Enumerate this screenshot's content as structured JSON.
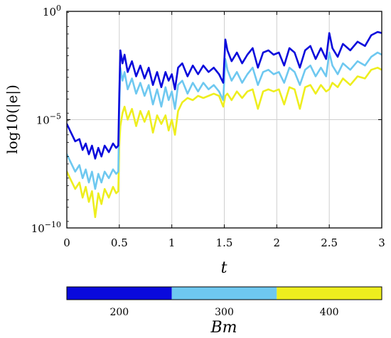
{
  "chart_data": {
    "type": "line",
    "title": "",
    "xlabel": "t",
    "ylabel": "log10(|e|)",
    "xlim": [
      0,
      3
    ],
    "ylim_log10": [
      -10,
      0
    ],
    "x_ticks": [
      "0",
      "0.5",
      "1",
      "1.5",
      "2",
      "2.5",
      "3"
    ],
    "y_ticks": [
      {
        "base": "10",
        "exp": "0",
        "value": 0
      },
      {
        "base": "10",
        "exp": "−5",
        "value": -5
      },
      {
        "base": "10",
        "exp": "−10",
        "value": -10
      }
    ],
    "grid": true,
    "colorbar": {
      "title": "Bm",
      "entries": [
        {
          "label": "200",
          "color": "#0a0adc"
        },
        {
          "label": "300",
          "color": "#6ec8f0"
        },
        {
          "label": "400",
          "color": "#eeee1e"
        }
      ]
    },
    "series": [
      {
        "name": "200",
        "color": "#0a0adc",
        "points": [
          [
            0,
            -5.2
          ],
          [
            0.04,
            -5.6
          ],
          [
            0.08,
            -6.0
          ],
          [
            0.12,
            -5.9
          ],
          [
            0.15,
            -6.4
          ],
          [
            0.18,
            -6.1
          ],
          [
            0.21,
            -6.6
          ],
          [
            0.24,
            -6.2
          ],
          [
            0.27,
            -6.8
          ],
          [
            0.3,
            -6.3
          ],
          [
            0.33,
            -6.7
          ],
          [
            0.36,
            -6.2
          ],
          [
            0.4,
            -6.5
          ],
          [
            0.44,
            -6.1
          ],
          [
            0.47,
            -6.3
          ],
          [
            0.49,
            -6.2
          ],
          [
            0.5,
            -3.8
          ],
          [
            0.51,
            -1.8
          ],
          [
            0.53,
            -2.4
          ],
          [
            0.55,
            -2.0
          ],
          [
            0.58,
            -2.8
          ],
          [
            0.62,
            -2.3
          ],
          [
            0.66,
            -3.0
          ],
          [
            0.7,
            -2.5
          ],
          [
            0.74,
            -3.1
          ],
          [
            0.78,
            -2.6
          ],
          [
            0.82,
            -3.4
          ],
          [
            0.86,
            -2.8
          ],
          [
            0.9,
            -3.5
          ],
          [
            0.94,
            -2.8
          ],
          [
            0.97,
            -3.2
          ],
          [
            1.0,
            -2.9
          ],
          [
            1.03,
            -3.6
          ],
          [
            1.06,
            -2.6
          ],
          [
            1.1,
            -2.4
          ],
          [
            1.15,
            -3.0
          ],
          [
            1.2,
            -2.5
          ],
          [
            1.25,
            -2.9
          ],
          [
            1.3,
            -2.5
          ],
          [
            1.35,
            -2.8
          ],
          [
            1.4,
            -2.6
          ],
          [
            1.45,
            -2.9
          ],
          [
            1.49,
            -3.3
          ],
          [
            1.51,
            -1.3
          ],
          [
            1.53,
            -1.8
          ],
          [
            1.57,
            -2.3
          ],
          [
            1.62,
            -1.9
          ],
          [
            1.67,
            -2.4
          ],
          [
            1.72,
            -2.0
          ],
          [
            1.77,
            -1.7
          ],
          [
            1.82,
            -2.6
          ],
          [
            1.87,
            -1.9
          ],
          [
            1.92,
            -1.8
          ],
          [
            1.97,
            -2.0
          ],
          [
            2.02,
            -1.9
          ],
          [
            2.07,
            -2.5
          ],
          [
            2.12,
            -1.7
          ],
          [
            2.17,
            -1.9
          ],
          [
            2.22,
            -2.6
          ],
          [
            2.27,
            -1.8
          ],
          [
            2.32,
            -1.6
          ],
          [
            2.37,
            -2.2
          ],
          [
            2.42,
            -1.7
          ],
          [
            2.47,
            -2.2
          ],
          [
            2.5,
            -1.0
          ],
          [
            2.53,
            -1.7
          ],
          [
            2.58,
            -2.1
          ],
          [
            2.63,
            -1.5
          ],
          [
            2.7,
            -1.8
          ],
          [
            2.77,
            -1.4
          ],
          [
            2.84,
            -1.6
          ],
          [
            2.9,
            -1.1
          ],
          [
            2.96,
            -0.95
          ],
          [
            3.0,
            -1.0
          ]
        ]
      },
      {
        "name": "300",
        "color": "#6ec8f0",
        "points": [
          [
            0,
            -6.6
          ],
          [
            0.04,
            -7.0
          ],
          [
            0.08,
            -7.4
          ],
          [
            0.12,
            -7.1
          ],
          [
            0.15,
            -7.7
          ],
          [
            0.18,
            -7.3
          ],
          [
            0.21,
            -7.9
          ],
          [
            0.24,
            -7.4
          ],
          [
            0.27,
            -8.2
          ],
          [
            0.3,
            -7.5
          ],
          [
            0.33,
            -7.9
          ],
          [
            0.36,
            -7.4
          ],
          [
            0.4,
            -7.7
          ],
          [
            0.44,
            -7.3
          ],
          [
            0.47,
            -7.5
          ],
          [
            0.49,
            -7.4
          ],
          [
            0.5,
            -4.5
          ],
          [
            0.51,
            -2.6
          ],
          [
            0.53,
            -3.2
          ],
          [
            0.55,
            -2.8
          ],
          [
            0.58,
            -3.6
          ],
          [
            0.62,
            -3.1
          ],
          [
            0.66,
            -3.8
          ],
          [
            0.7,
            -3.3
          ],
          [
            0.74,
            -3.9
          ],
          [
            0.78,
            -3.4
          ],
          [
            0.82,
            -4.3
          ],
          [
            0.86,
            -3.6
          ],
          [
            0.9,
            -4.4
          ],
          [
            0.94,
            -3.5
          ],
          [
            0.97,
            -4.1
          ],
          [
            1.0,
            -3.7
          ],
          [
            1.03,
            -4.5
          ],
          [
            1.06,
            -3.4
          ],
          [
            1.1,
            -3.2
          ],
          [
            1.15,
            -3.8
          ],
          [
            1.2,
            -3.3
          ],
          [
            1.25,
            -3.7
          ],
          [
            1.3,
            -3.3
          ],
          [
            1.35,
            -3.6
          ],
          [
            1.4,
            -3.4
          ],
          [
            1.45,
            -3.7
          ],
          [
            1.49,
            -4.1
          ],
          [
            1.51,
            -2.2
          ],
          [
            1.53,
            -2.7
          ],
          [
            1.57,
            -3.2
          ],
          [
            1.62,
            -2.8
          ],
          [
            1.67,
            -3.3
          ],
          [
            1.72,
            -2.9
          ],
          [
            1.77,
            -2.6
          ],
          [
            1.82,
            -3.4
          ],
          [
            1.87,
            -2.8
          ],
          [
            1.92,
            -2.7
          ],
          [
            1.97,
            -2.9
          ],
          [
            2.02,
            -2.8
          ],
          [
            2.07,
            -3.3
          ],
          [
            2.12,
            -2.6
          ],
          [
            2.17,
            -2.8
          ],
          [
            2.22,
            -3.4
          ],
          [
            2.27,
            -2.7
          ],
          [
            2.32,
            -2.5
          ],
          [
            2.37,
            -3.0
          ],
          [
            2.42,
            -2.6
          ],
          [
            2.47,
            -3.0
          ],
          [
            2.5,
            -1.9
          ],
          [
            2.53,
            -2.5
          ],
          [
            2.58,
            -2.9
          ],
          [
            2.63,
            -2.4
          ],
          [
            2.7,
            -2.7
          ],
          [
            2.77,
            -2.3
          ],
          [
            2.84,
            -2.5
          ],
          [
            2.9,
            -2.1
          ],
          [
            2.96,
            -1.9
          ],
          [
            3.0,
            -2.0
          ]
        ]
      },
      {
        "name": "400",
        "color": "#eeee1e",
        "points": [
          [
            0,
            -7.4
          ],
          [
            0.04,
            -7.8
          ],
          [
            0.08,
            -8.2
          ],
          [
            0.12,
            -7.9
          ],
          [
            0.15,
            -8.6
          ],
          [
            0.18,
            -8.1
          ],
          [
            0.21,
            -8.8
          ],
          [
            0.24,
            -8.3
          ],
          [
            0.27,
            -9.5
          ],
          [
            0.3,
            -8.4
          ],
          [
            0.33,
            -8.9
          ],
          [
            0.36,
            -8.2
          ],
          [
            0.4,
            -8.6
          ],
          [
            0.44,
            -8.1
          ],
          [
            0.47,
            -8.4
          ],
          [
            0.49,
            -8.3
          ],
          [
            0.5,
            -6.2
          ],
          [
            0.51,
            -5.3
          ],
          [
            0.53,
            -4.7
          ],
          [
            0.55,
            -4.4
          ],
          [
            0.58,
            -5.0
          ],
          [
            0.62,
            -4.5
          ],
          [
            0.66,
            -5.3
          ],
          [
            0.7,
            -4.6
          ],
          [
            0.74,
            -5.1
          ],
          [
            0.78,
            -4.6
          ],
          [
            0.82,
            -5.6
          ],
          [
            0.86,
            -4.8
          ],
          [
            0.9,
            -5.2
          ],
          [
            0.94,
            -4.8
          ],
          [
            0.97,
            -5.5
          ],
          [
            1.0,
            -5.0
          ],
          [
            1.03,
            -5.7
          ],
          [
            1.06,
            -4.6
          ],
          [
            1.1,
            -4.2
          ],
          [
            1.15,
            -4.0
          ],
          [
            1.2,
            -4.1
          ],
          [
            1.25,
            -3.9
          ],
          [
            1.3,
            -4.0
          ],
          [
            1.35,
            -3.9
          ],
          [
            1.4,
            -3.8
          ],
          [
            1.45,
            -3.9
          ],
          [
            1.49,
            -4.4
          ],
          [
            1.51,
            -3.9
          ],
          [
            1.53,
            -3.8
          ],
          [
            1.57,
            -4.1
          ],
          [
            1.62,
            -3.7
          ],
          [
            1.67,
            -4.0
          ],
          [
            1.72,
            -3.7
          ],
          [
            1.77,
            -3.6
          ],
          [
            1.82,
            -4.5
          ],
          [
            1.87,
            -3.7
          ],
          [
            1.92,
            -3.6
          ],
          [
            1.97,
            -3.7
          ],
          [
            2.02,
            -3.6
          ],
          [
            2.07,
            -4.3
          ],
          [
            2.12,
            -3.5
          ],
          [
            2.17,
            -3.6
          ],
          [
            2.22,
            -4.5
          ],
          [
            2.27,
            -3.5
          ],
          [
            2.32,
            -3.4
          ],
          [
            2.37,
            -3.8
          ],
          [
            2.42,
            -3.4
          ],
          [
            2.47,
            -3.7
          ],
          [
            2.5,
            -3.6
          ],
          [
            2.53,
            -3.3
          ],
          [
            2.58,
            -3.5
          ],
          [
            2.63,
            -3.1
          ],
          [
            2.7,
            -3.4
          ],
          [
            2.77,
            -3.0
          ],
          [
            2.84,
            -3.1
          ],
          [
            2.9,
            -2.7
          ],
          [
            2.96,
            -2.6
          ],
          [
            3.0,
            -2.7
          ]
        ]
      }
    ]
  }
}
